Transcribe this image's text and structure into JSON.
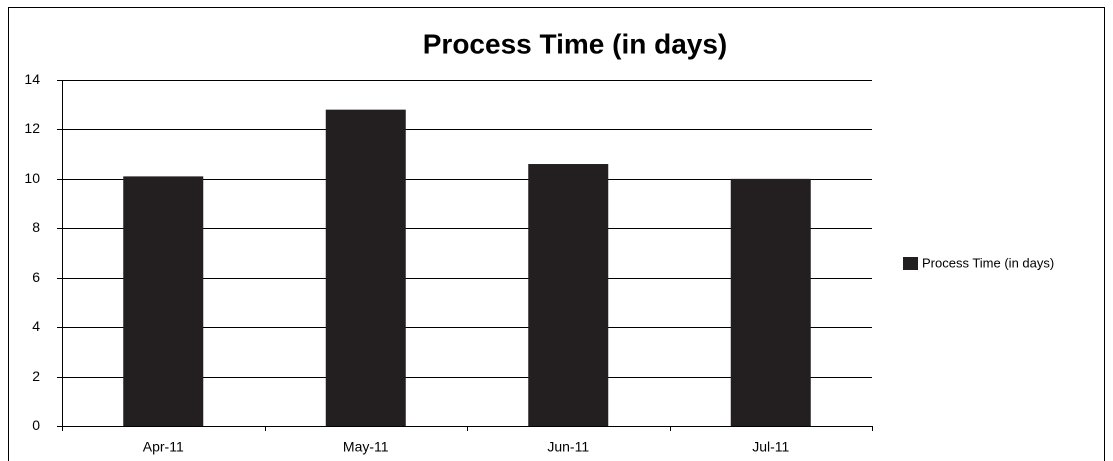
{
  "chart_data": {
    "type": "bar",
    "title": "Process Time (in days)",
    "categories": [
      "Apr-11",
      "May-11",
      "Jun-11",
      "Jul-11"
    ],
    "series": [
      {
        "name": "Process Time (in days)",
        "color": "#231f20",
        "values": [
          10.1,
          12.8,
          10.6,
          10.0
        ]
      }
    ],
    "ylim": [
      0,
      14
    ],
    "yticks": [
      0,
      2,
      4,
      6,
      8,
      10,
      12,
      14
    ],
    "grid": true,
    "legend": "right"
  }
}
